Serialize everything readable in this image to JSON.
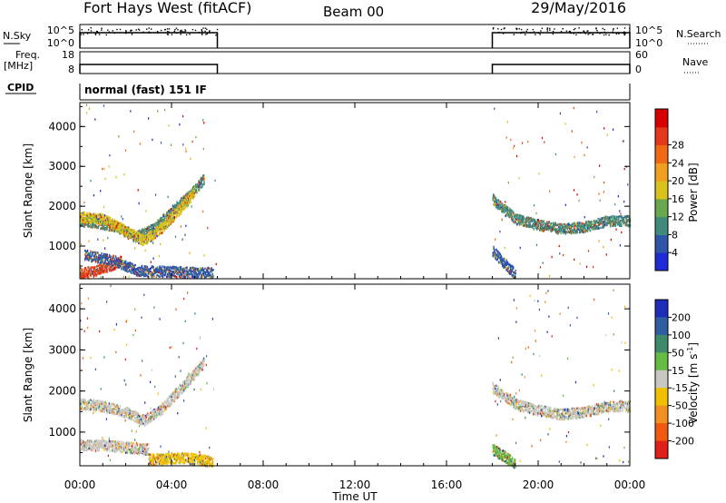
{
  "header": {
    "title": "Fort Hays West (fitACF)",
    "beam": "Beam 00",
    "date": "29/May/2016"
  },
  "panel_labels": {
    "nsky": "N.Sky",
    "nsky_ticks": [
      "10^5",
      "10^0"
    ],
    "nsearch": "N.Search",
    "nsearch_ticks": [
      "10^5",
      "10^0"
    ],
    "freq": "Freq.",
    "freq_unit": "[MHz]",
    "freq_ticks": [
      "18",
      "8"
    ],
    "nave": "Nave",
    "nave_ticks": [
      "60",
      "0"
    ],
    "cpid": "CPID",
    "mode": "normal (fast) 151 IF"
  },
  "axes": {
    "ylabel": "Slant Range [km]",
    "xlabel": "Time UT",
    "yticks": [
      "1000",
      "2000",
      "3000",
      "4000"
    ],
    "xticks": [
      "00:00",
      "04:00",
      "08:00",
      "12:00",
      "16:00",
      "20:00",
      "00:00"
    ]
  },
  "power_scale": {
    "label": "Power [dB]",
    "ticks": [
      "4",
      "8",
      "12",
      "16",
      "20",
      "24",
      "28"
    ],
    "colors": [
      "#1f2bd6",
      "#2f56a6",
      "#3f8a7a",
      "#6aa84f",
      "#d8c21b",
      "#f0a020",
      "#f06a15",
      "#e5371a",
      "#d60000"
    ]
  },
  "velocity_scale": {
    "label": "Velocity [m s",
    "label_sup": "-1",
    "label_end": "]",
    "ticks": [
      "200",
      "100",
      "50",
      "15",
      "-15",
      "-50",
      "-100",
      "-200"
    ],
    "colors": [
      "#1e2cb8",
      "#2f5ea0",
      "#3f8a6a",
      "#66bb44",
      "#c8c8c0",
      "#f0c000",
      "#f09020",
      "#ef5a10",
      "#e0201a"
    ]
  },
  "chart_data": {
    "type": "heatmap",
    "title": "Fort Hays West (fitACF)",
    "xlabel": "Time UT",
    "ylabel": "Slant Range [km]",
    "xlim": [
      0,
      24
    ],
    "ylim": [
      180,
      4600
    ],
    "operating_intervals_hours": [
      [
        0,
        6
      ],
      [
        18,
        24
      ]
    ],
    "power_tracks": [
      {
        "points": [
          [
            0.0,
            1650
          ],
          [
            0.8,
            1600
          ],
          [
            1.6,
            1500
          ],
          [
            2.4,
            1250
          ],
          [
            3.2,
            1450
          ],
          [
            4.0,
            1900
          ],
          [
            4.8,
            2300
          ],
          [
            5.4,
            2700
          ]
        ],
        "color": "#3f8a7a"
      },
      {
        "points": [
          [
            0.0,
            1750
          ],
          [
            1.0,
            1700
          ],
          [
            2.0,
            1400
          ],
          [
            2.8,
            1150
          ],
          [
            3.6,
            1500
          ],
          [
            4.6,
            2100
          ],
          [
            5.0,
            2400
          ]
        ],
        "color": "#d8c21b"
      },
      {
        "points": [
          [
            0.0,
            350
          ],
          [
            0.6,
            380
          ],
          [
            1.2,
            500
          ],
          [
            1.8,
            650
          ]
        ],
        "color": "#e5371a"
      },
      {
        "points": [
          [
            0.2,
            800
          ],
          [
            1.5,
            650
          ],
          [
            2.5,
            400
          ],
          [
            5.8,
            350
          ]
        ],
        "color": "#2f56a6"
      },
      {
        "points": [
          [
            18.0,
            2200
          ],
          [
            19.0,
            1700
          ],
          [
            20.0,
            1550
          ],
          [
            21.0,
            1450
          ],
          [
            22.0,
            1500
          ],
          [
            23.0,
            1650
          ],
          [
            24.0,
            1650
          ]
        ],
        "color": "#3f8a7a"
      },
      {
        "points": [
          [
            18.0,
            900
          ],
          [
            18.5,
            600
          ],
          [
            19.0,
            300
          ]
        ],
        "color": "#2f56a6"
      }
    ],
    "velocity_tracks": [
      {
        "points": [
          [
            0.0,
            1700
          ],
          [
            1.0,
            1650
          ],
          [
            2.0,
            1500
          ],
          [
            2.8,
            1300
          ],
          [
            3.6,
            1600
          ],
          [
            4.6,
            2200
          ],
          [
            5.4,
            2700
          ]
        ],
        "color": "#c8c8c0"
      },
      {
        "points": [
          [
            0.0,
            700
          ],
          [
            1.0,
            700
          ],
          [
            2.0,
            650
          ],
          [
            3.0,
            600
          ]
        ],
        "color": "#c8c8c0"
      },
      {
        "points": [
          [
            3.0,
            350
          ],
          [
            4.5,
            400
          ],
          [
            5.8,
            300
          ]
        ],
        "color": "#f0c000"
      },
      {
        "points": [
          [
            18.0,
            2100
          ],
          [
            19.0,
            1700
          ],
          [
            20.0,
            1550
          ],
          [
            21.0,
            1450
          ],
          [
            22.0,
            1500
          ],
          [
            23.0,
            1650
          ],
          [
            24.0,
            1650
          ]
        ],
        "color": "#c8c8c0"
      },
      {
        "points": [
          [
            18.0,
            600
          ],
          [
            18.6,
            400
          ],
          [
            19.0,
            250
          ]
        ],
        "color": "#66bb44"
      }
    ]
  }
}
